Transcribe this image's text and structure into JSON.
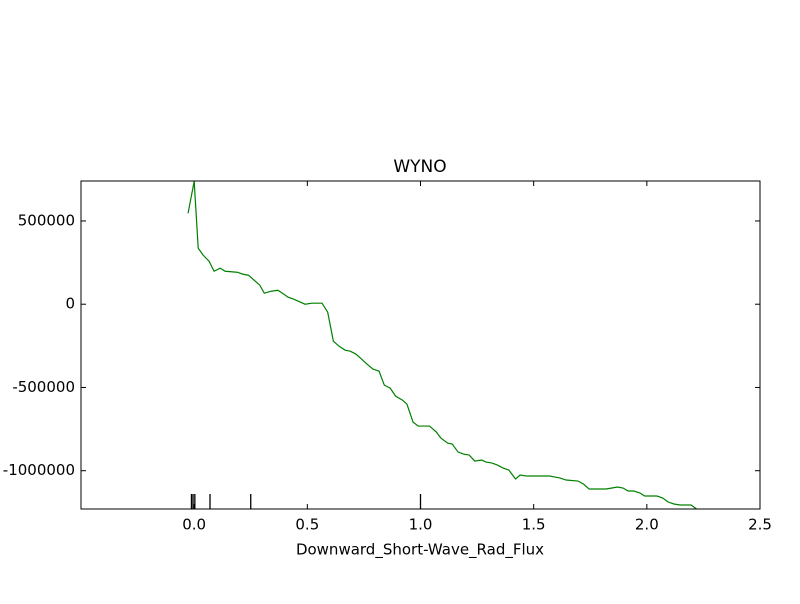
{
  "chart_data": {
    "type": "line",
    "title": "WYNO",
    "xlabel": "Downward_Short-Wave_Rad_Flux",
    "x": [
      -0.027,
      0.0,
      0.018,
      0.04,
      0.066,
      0.088,
      0.115,
      0.137,
      0.19,
      0.216,
      0.24,
      0.29,
      0.31,
      0.34,
      0.37,
      0.39,
      0.415,
      0.44,
      0.47,
      0.49,
      0.52,
      0.54,
      0.565,
      0.59,
      0.615,
      0.64,
      0.667,
      0.69,
      0.715,
      0.74,
      0.764,
      0.79,
      0.817,
      0.84,
      0.866,
      0.89,
      0.92,
      0.94,
      0.967,
      0.99,
      1.016,
      1.04,
      1.07,
      1.09,
      1.12,
      1.14,
      1.166,
      1.19,
      1.215,
      1.24,
      1.27,
      1.29,
      1.316,
      1.34,
      1.365,
      1.39,
      1.42,
      1.44,
      1.47,
      1.49,
      1.515,
      1.57,
      1.595,
      1.617,
      1.643,
      1.696,
      1.72,
      1.745,
      1.79,
      1.82,
      1.846,
      1.87,
      1.895,
      1.917,
      1.943,
      1.97,
      1.99,
      2.045,
      2.07,
      2.094,
      2.12,
      2.147,
      2.195,
      2.22,
      2.245
    ],
    "series": [
      {
        "color": "#008000",
        "values": [
          546000,
          738000,
          336000,
          294000,
          258000,
          198000,
          216000,
          198000,
          192000,
          180000,
          174000,
          114000,
          66000,
          78000,
          84000,
          66000,
          42000,
          30000,
          12000,
          0,
          6000,
          6000,
          6000,
          -48000,
          -222000,
          -252000,
          -276000,
          -282000,
          -300000,
          -330000,
          -360000,
          -390000,
          -402000,
          -486000,
          -504000,
          -552000,
          -576000,
          -600000,
          -708000,
          -732000,
          -732000,
          -732000,
          -768000,
          -804000,
          -834000,
          -840000,
          -888000,
          -900000,
          -906000,
          -942000,
          -936000,
          -948000,
          -954000,
          -966000,
          -984000,
          -996000,
          -1050000,
          -1026000,
          -1032000,
          -1032000,
          -1032000,
          -1032000,
          -1038000,
          -1044000,
          -1056000,
          -1062000,
          -1080000,
          -1110000,
          -1110000,
          -1110000,
          -1104000,
          -1098000,
          -1104000,
          -1122000,
          -1122000,
          -1134000,
          -1152000,
          -1152000,
          -1164000,
          -1188000,
          -1200000,
          -1206000,
          -1206000,
          -1230000,
          -1250000
        ]
      }
    ],
    "rug": {
      "color": "#000000",
      "values": [
        -0.012,
        -0.005,
        0.003,
        0.07,
        0.25,
        1.0
      ]
    },
    "xlim": [
      -0.5,
      2.5
    ],
    "ylim": [
      -1230000,
      740000
    ],
    "xticks": [
      {
        "value": 0,
        "label": "0.0"
      },
      {
        "value": 0.5,
        "label": "0.5"
      },
      {
        "value": 1,
        "label": "1.0"
      },
      {
        "value": 1.5,
        "label": "1.5"
      },
      {
        "value": 2,
        "label": "2.0"
      },
      {
        "value": 2.5,
        "label": "2.5"
      }
    ],
    "yticks": [
      500000,
      0,
      -500000,
      -1000000
    ]
  }
}
